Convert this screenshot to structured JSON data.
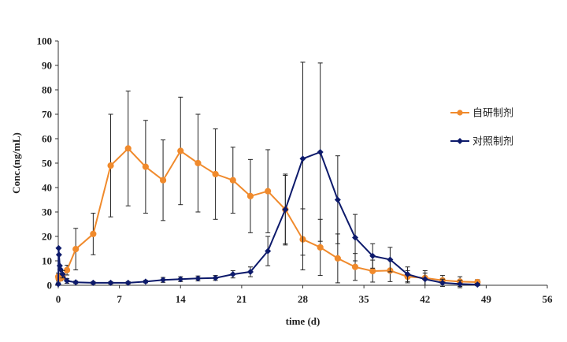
{
  "chart_data": {
    "type": "line",
    "xlabel": "time (d)",
    "ylabel": "Conc.(ng/mL)",
    "xlim": [
      0,
      56
    ],
    "ylim": [
      0,
      100
    ],
    "x_ticks": [
      0,
      7,
      14,
      21,
      28,
      35,
      42,
      49,
      56
    ],
    "y_ticks": [
      0,
      10,
      20,
      30,
      40,
      50,
      60,
      70,
      80,
      90,
      100
    ],
    "legend_position": "right",
    "series": [
      {
        "name": "自研制剂",
        "color": "#F08A2C",
        "marker": "circle",
        "points": [
          {
            "x": 0,
            "y": 3.5,
            "err": 1.5
          },
          {
            "x": 0.04,
            "y": 2.8,
            "err": 1.2
          },
          {
            "x": 0.08,
            "y": 3.0,
            "err": 1.2
          },
          {
            "x": 0.17,
            "y": 3.2,
            "err": 1.0
          },
          {
            "x": 0.25,
            "y": 2.8,
            "err": 1.0
          },
          {
            "x": 0.5,
            "y": 3.5,
            "err": 1.2
          },
          {
            "x": 1,
            "y": 6.2,
            "err": 2.0
          },
          {
            "x": 2,
            "y": 14.8,
            "err": 8.5
          },
          {
            "x": 4,
            "y": 21.0,
            "err": 8.5
          },
          {
            "x": 6,
            "y": 49.0,
            "err": 21.0
          },
          {
            "x": 8,
            "y": 56.0,
            "err": 23.5
          },
          {
            "x": 10,
            "y": 48.5,
            "err": 19.0
          },
          {
            "x": 12,
            "y": 43.0,
            "err": 16.5
          },
          {
            "x": 14,
            "y": 55.0,
            "err": 22.0
          },
          {
            "x": 16,
            "y": 50.0,
            "err": 20.0
          },
          {
            "x": 18,
            "y": 45.5,
            "err": 18.5
          },
          {
            "x": 20,
            "y": 43.0,
            "err": 13.5
          },
          {
            "x": 22,
            "y": 36.5,
            "err": 15.0
          },
          {
            "x": 24,
            "y": 38.5,
            "err": 17.0
          },
          {
            "x": 26,
            "y": 31.0,
            "err": 14.0
          },
          {
            "x": 28,
            "y": 18.8,
            "err": 12.5
          },
          {
            "x": 30,
            "y": 15.5,
            "err": 11.5
          },
          {
            "x": 32,
            "y": 11.0,
            "err": 10.0
          },
          {
            "x": 34,
            "y": 7.5,
            "err": 5.5
          },
          {
            "x": 36,
            "y": 5.8,
            "err": 4.5
          },
          {
            "x": 38,
            "y": 6.0,
            "err": 4.5
          },
          {
            "x": 40,
            "y": 3.5,
            "err": 2.5
          },
          {
            "x": 42,
            "y": 3.0,
            "err": 3.0
          },
          {
            "x": 44,
            "y": 2.0,
            "err": 2.0
          },
          {
            "x": 46,
            "y": 1.5,
            "err": 2.0
          },
          {
            "x": 48,
            "y": 1.3,
            "err": 1.0
          }
        ]
      },
      {
        "name": "对照制剂",
        "color": "#0D1A6B",
        "marker": "diamond",
        "points": [
          {
            "x": 0,
            "y": 0.5,
            "err": 0.5
          },
          {
            "x": 0.04,
            "y": 15.2,
            "err": 0
          },
          {
            "x": 0.08,
            "y": 12.5,
            "err": 0
          },
          {
            "x": 0.17,
            "y": 8.0,
            "err": 0
          },
          {
            "x": 0.25,
            "y": 6.5,
            "err": 0
          },
          {
            "x": 0.5,
            "y": 4.5,
            "err": 1.5
          },
          {
            "x": 1,
            "y": 1.8,
            "err": 1.0
          },
          {
            "x": 2,
            "y": 1.2,
            "err": 0.5
          },
          {
            "x": 4,
            "y": 1.0,
            "err": 0.5
          },
          {
            "x": 6,
            "y": 1.0,
            "err": 0.5
          },
          {
            "x": 8,
            "y": 1.0,
            "err": 0.5
          },
          {
            "x": 10,
            "y": 1.5,
            "err": 0.5
          },
          {
            "x": 12,
            "y": 2.2,
            "err": 1.0
          },
          {
            "x": 14,
            "y": 2.5,
            "err": 1.0
          },
          {
            "x": 16,
            "y": 2.8,
            "err": 1.0
          },
          {
            "x": 18,
            "y": 3.0,
            "err": 1.0
          },
          {
            "x": 20,
            "y": 4.5,
            "err": 1.5
          },
          {
            "x": 22,
            "y": 5.5,
            "err": 2.0
          },
          {
            "x": 24,
            "y": 14.0,
            "err": 6.0
          },
          {
            "x": 26,
            "y": 31.0,
            "err": 14.5
          },
          {
            "x": 28,
            "y": 51.8,
            "err": 39.5
          },
          {
            "x": 30,
            "y": 54.5,
            "err": 36.5
          },
          {
            "x": 32,
            "y": 35.0,
            "err": 18.0
          },
          {
            "x": 34,
            "y": 19.5,
            "err": 9.5
          },
          {
            "x": 36,
            "y": 12.0,
            "err": 5.0
          },
          {
            "x": 38,
            "y": 10.5,
            "err": 5.0
          },
          {
            "x": 40,
            "y": 4.5,
            "err": 3.0
          },
          {
            "x": 42,
            "y": 2.5,
            "err": 2.5
          },
          {
            "x": 44,
            "y": 1.0,
            "err": 1.5
          },
          {
            "x": 46,
            "y": 0.5,
            "err": 1.5
          },
          {
            "x": 48,
            "y": 0.3,
            "err": 0.5
          }
        ]
      }
    ]
  }
}
